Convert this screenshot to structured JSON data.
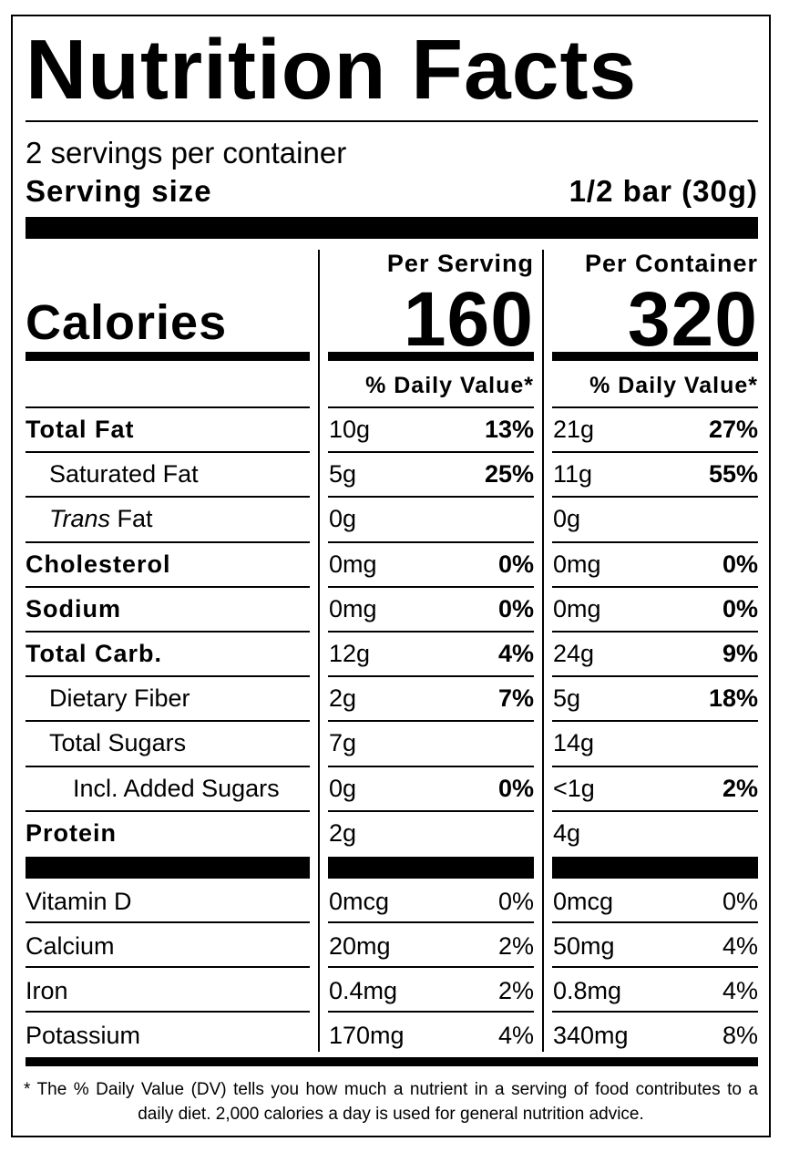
{
  "title": "Nutrition Facts",
  "servings_per_container": "2 servings per container",
  "serving_size_label": "Serving size",
  "serving_size_value": "1/2 bar (30g)",
  "columns": {
    "per_serving": "Per Serving",
    "per_container": "Per Container"
  },
  "calories": {
    "label": "Calories",
    "per_serving": "160",
    "per_container": "320"
  },
  "daily_value_header": "% Daily Value*",
  "nutrients": [
    {
      "name": "Total Fat",
      "serving_amount": "10g",
      "serving_dv": "13%",
      "container_amount": "21g",
      "container_dv": "27%"
    },
    {
      "name": "Saturated Fat",
      "serving_amount": "5g",
      "serving_dv": "25%",
      "container_amount": "11g",
      "container_dv": "55%"
    },
    {
      "name_italic": "Trans",
      "name_rest": " Fat",
      "serving_amount": "0g",
      "serving_dv": "",
      "container_amount": "0g",
      "container_dv": ""
    },
    {
      "name": "Cholesterol",
      "serving_amount": "0mg",
      "serving_dv": "0%",
      "container_amount": "0mg",
      "container_dv": "0%"
    },
    {
      "name": "Sodium",
      "serving_amount": "0mg",
      "serving_dv": "0%",
      "container_amount": "0mg",
      "container_dv": "0%"
    },
    {
      "name": "Total Carb.",
      "serving_amount": "12g",
      "serving_dv": "4%",
      "container_amount": "24g",
      "container_dv": "9%"
    },
    {
      "name": "Dietary Fiber",
      "serving_amount": "2g",
      "serving_dv": "7%",
      "container_amount": "5g",
      "container_dv": "18%"
    },
    {
      "name": "Total Sugars",
      "serving_amount": "7g",
      "serving_dv": "",
      "container_amount": "14g",
      "container_dv": ""
    },
    {
      "name": "Incl. Added Sugars",
      "serving_amount": "0g",
      "serving_dv": "0%",
      "container_amount": "<1g",
      "container_dv": "2%"
    },
    {
      "name": "Protein",
      "serving_amount": "2g",
      "serving_dv": "",
      "container_amount": "4g",
      "container_dv": ""
    }
  ],
  "vitamins": [
    {
      "name": "Vitamin D",
      "serving_amount": "0mcg",
      "serving_dv": "0%",
      "container_amount": "0mcg",
      "container_dv": "0%"
    },
    {
      "name": "Calcium",
      "serving_amount": "20mg",
      "serving_dv": "2%",
      "container_amount": "50mg",
      "container_dv": "4%"
    },
    {
      "name": "Iron",
      "serving_amount": "0.4mg",
      "serving_dv": "2%",
      "container_amount": "0.8mg",
      "container_dv": "4%"
    },
    {
      "name": "Potassium",
      "serving_amount": "170mg",
      "serving_dv": "4%",
      "container_amount": "340mg",
      "container_dv": "8%"
    }
  ],
  "footnote": "* The % Daily Value (DV) tells you how much a nutrient in a serving of food contributes to a daily diet. 2,000 calories a day is used for general nutrition advice."
}
